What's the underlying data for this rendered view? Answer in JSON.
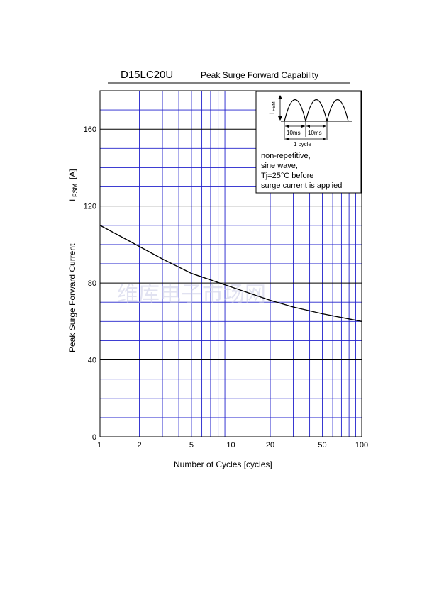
{
  "chart_data": {
    "type": "line",
    "title": "D15LC20U",
    "subtitle": "Peak Surge Forward Capability",
    "xlabel": "Number of Cycles  [cycles]",
    "ylabel": "Peak Surge Forward Current",
    "ylabel_symbol": "I",
    "ylabel_sub": "FSM",
    "ylabel_unit": "[A]",
    "xscale": "log",
    "xlim": [
      1,
      100
    ],
    "ylim": [
      0,
      180
    ],
    "grid": true,
    "x_ticks": [
      1,
      2,
      5,
      10,
      20,
      50,
      100
    ],
    "x_tick_labels": [
      "1",
      "2",
      "5",
      "10",
      "20",
      "50",
      "100"
    ],
    "y_ticks": [
      0,
      40,
      80,
      120,
      160
    ],
    "y_tick_labels": [
      "0",
      "40",
      "80",
      "120",
      "160"
    ],
    "series": [
      {
        "x": [
          1,
          2,
          3,
          5,
          10,
          20,
          30,
          50,
          100
        ],
        "y": [
          110,
          99,
          92.5,
          85,
          78,
          71,
          67.5,
          64,
          60
        ]
      }
    ],
    "inset": {
      "wave_label_symbol": "I",
      "wave_label_sub": "FSM",
      "half_period_labels": [
        "10ms",
        "10ms"
      ],
      "cycle_label": "1 cycle",
      "notes": [
        "non-repetitive,",
        "sine wave,",
        "Tj=25°C before",
        "surge current is applied"
      ]
    },
    "colors": {
      "grid": "#2222cc",
      "major_grid": "#000000",
      "curve": "#000000"
    }
  },
  "watermark": "维库电子市场网"
}
